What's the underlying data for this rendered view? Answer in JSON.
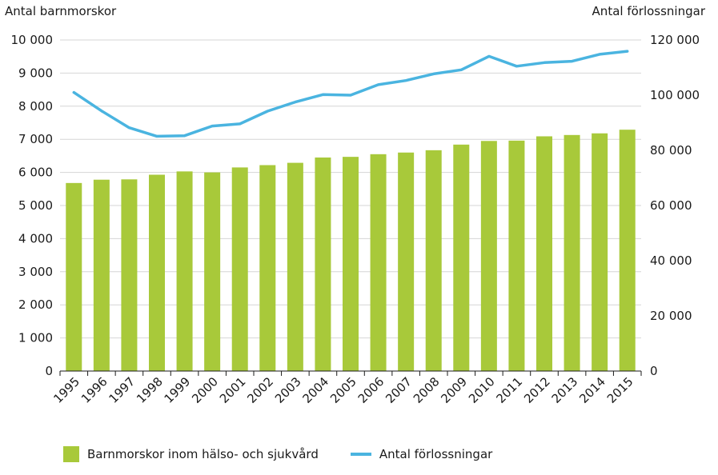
{
  "chart_data": {
    "type": "bar",
    "title": "",
    "xlabel": "",
    "ylabel": "Antal barnmorskor",
    "ylabel_right": "Antal förlossningar",
    "categories": [
      "1995",
      "1996",
      "1997",
      "1998",
      "1999",
      "2000",
      "2001",
      "2002",
      "2003",
      "2004",
      "2005",
      "2006",
      "2007",
      "2008",
      "2009",
      "2010",
      "2011",
      "2012",
      "2013",
      "2014",
      "2015"
    ],
    "ylim": [
      0,
      10000
    ],
    "ylim_right": [
      0,
      120000
    ],
    "yticks": [
      "0",
      "1 000",
      "2 000",
      "3 000",
      "4 000",
      "5 000",
      "6 000",
      "7 000",
      "8 000",
      "9 000",
      "10 000"
    ],
    "yticks_right": [
      "0",
      "20 000",
      "40 000",
      "60 000",
      "80 000",
      "100 000",
      "120 000"
    ],
    "grid": true,
    "legend_position": "bottom",
    "series": [
      {
        "name": "Barnmorskor inom hälso- och sjukvård",
        "type": "bar",
        "axis": "left",
        "color": "#a8c93a",
        "values": [
          5680,
          5780,
          5790,
          5930,
          6030,
          6000,
          6150,
          6220,
          6290,
          6450,
          6470,
          6550,
          6600,
          6670,
          6840,
          6950,
          6960,
          7090,
          7130,
          7180,
          7290
        ]
      },
      {
        "name": "Antal förlossningar",
        "type": "line",
        "axis": "right",
        "color": "#4ab4e0",
        "values": [
          101000,
          94300,
          88200,
          85100,
          85300,
          88800,
          89600,
          94200,
          97500,
          100200,
          100000,
          103800,
          105300,
          107700,
          109200,
          114100,
          110500,
          111800,
          112300,
          114800,
          115900
        ]
      }
    ]
  }
}
